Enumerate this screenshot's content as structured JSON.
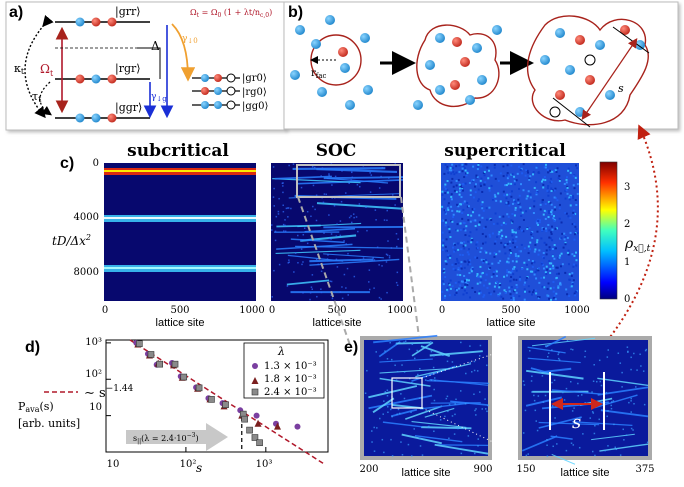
{
  "panels": {
    "a": "a)",
    "b": "b)",
    "c": "c)",
    "d": "d)",
    "e": "e)"
  },
  "panel_a": {
    "states_left": [
      "|grr⟩",
      "|rgr⟩",
      "|ggr⟩"
    ],
    "states_right": [
      "|gr0⟩",
      "|rg0⟩",
      "|gg0⟩"
    ],
    "omega": "Ω_t",
    "delta": "Δ",
    "kappa": "κ_t",
    "tau": "τ_t",
    "gamma_up": "γ↓0",
    "gamma_low": "γ↓g",
    "formula": "Ω_t = Ω_0 (1 + λt / n_c,0)",
    "colors": {
      "red_line": "#b0182a",
      "blue_arrow": "#1a2fd6",
      "orange_arrow": "#f0a030",
      "atom_red": "#d93a2b",
      "atom_blue": "#2f9fe0"
    }
  },
  "panel_b": {
    "rfac": "r_fac",
    "s": "s",
    "outline_color": "#a8231c"
  },
  "panel_c": {
    "titles": [
      "subcritical",
      "SOC",
      "supercritical"
    ],
    "ylabel": "tD/Δx²",
    "yticks": [
      "0",
      "4000",
      "8000"
    ],
    "xticks": [
      "0",
      "500",
      "1000"
    ],
    "xlabel": "lattice site",
    "colorbar_label": "ρ_x,t",
    "colorbar_ticks": [
      "0",
      "1",
      "2",
      "3"
    ]
  },
  "panel_d": {
    "ylabel_main": "P_ava(s)",
    "ylabel_units": "[arb. units]",
    "xlabel": "s",
    "fit_label": "∼ s^−1.44",
    "cutoff_label": "s_||(λ = 2.4·10⁻³)",
    "legend_title": "λ",
    "legend": [
      "1.3 × 10⁻³",
      "1.8 × 10⁻³",
      "2.4 × 10⁻³"
    ],
    "xticks": [
      "10",
      "10²",
      "10³"
    ],
    "yticks": [
      "10³",
      "10²",
      "10",
      "1"
    ]
  },
  "panel_e": {
    "xlabel": "lattice site",
    "left_ticks": [
      "200",
      "900"
    ],
    "right_ticks": [
      "150",
      "375"
    ],
    "s_label": "s"
  },
  "chart_data": {
    "type": "scatter",
    "xscale": "log",
    "yscale": "log",
    "xlim": [
      10,
      6000
    ],
    "ylim": [
      1,
      1200
    ],
    "xlabel": "s",
    "ylabel": "P_ava(s) [arb. units]",
    "legend_title": "λ",
    "series": [
      {
        "name": "1.3 × 10⁻³",
        "marker": "circle",
        "color": "#7a3fa0",
        "x": [
          25,
          35,
          45,
          70,
          90,
          140,
          200,
          300,
          500,
          800,
          1400,
          2600
        ],
        "y": [
          1000,
          500,
          250,
          280,
          120,
          60,
          30,
          22,
          14,
          10,
          6,
          5
        ]
      },
      {
        "name": "1.8 × 10⁻³",
        "marker": "triangle",
        "color": "#7a1f1f",
        "x": [
          25,
          35,
          45,
          70,
          90,
          140,
          200,
          300,
          500,
          800,
          1400
        ],
        "y": [
          900,
          450,
          270,
          240,
          110,
          55,
          28,
          18,
          10,
          6,
          5
        ]
      },
      {
        "name": "2.4 × 10⁻³",
        "marker": "square",
        "color": "#8a8a8a",
        "x": [
          25,
          35,
          45,
          70,
          90,
          140,
          200,
          300,
          500,
          520,
          600,
          700,
          800
        ],
        "y": [
          950,
          480,
          260,
          260,
          115,
          58,
          28,
          20,
          11,
          8,
          4,
          2.5,
          1.8
        ]
      }
    ],
    "fit": {
      "exponent": -1.44,
      "amplitude": 110000,
      "style": "dashed",
      "color": "#b0182a"
    },
    "cutoff_x": 500
  }
}
